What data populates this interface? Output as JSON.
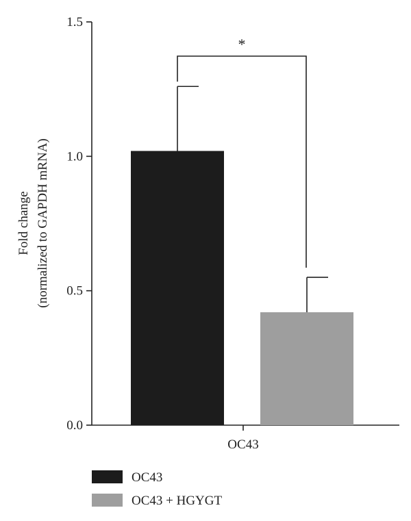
{
  "chart_data": {
    "type": "bar",
    "categories": [
      "OC43"
    ],
    "series": [
      {
        "name": "OC43",
        "values": [
          1.02
        ],
        "error": [
          0.24
        ],
        "color": "#1c1c1c"
      },
      {
        "name": "OC43 + HGYGT",
        "values": [
          0.42
        ],
        "error": [
          0.13
        ],
        "color": "#9e9e9e"
      }
    ],
    "ylabel_line1": "Fold change",
    "ylabel_line2": "(normalized to GAPDH mRNA)",
    "xlabel": "",
    "ylim": [
      0,
      1.5
    ],
    "yticks": [
      "0.0",
      "0.5",
      "1.0",
      "1.5"
    ],
    "grid": false,
    "legend_position": "bottom-left",
    "significance": {
      "label": "*",
      "between": [
        "OC43",
        "OC43 + HGYGT"
      ]
    }
  }
}
